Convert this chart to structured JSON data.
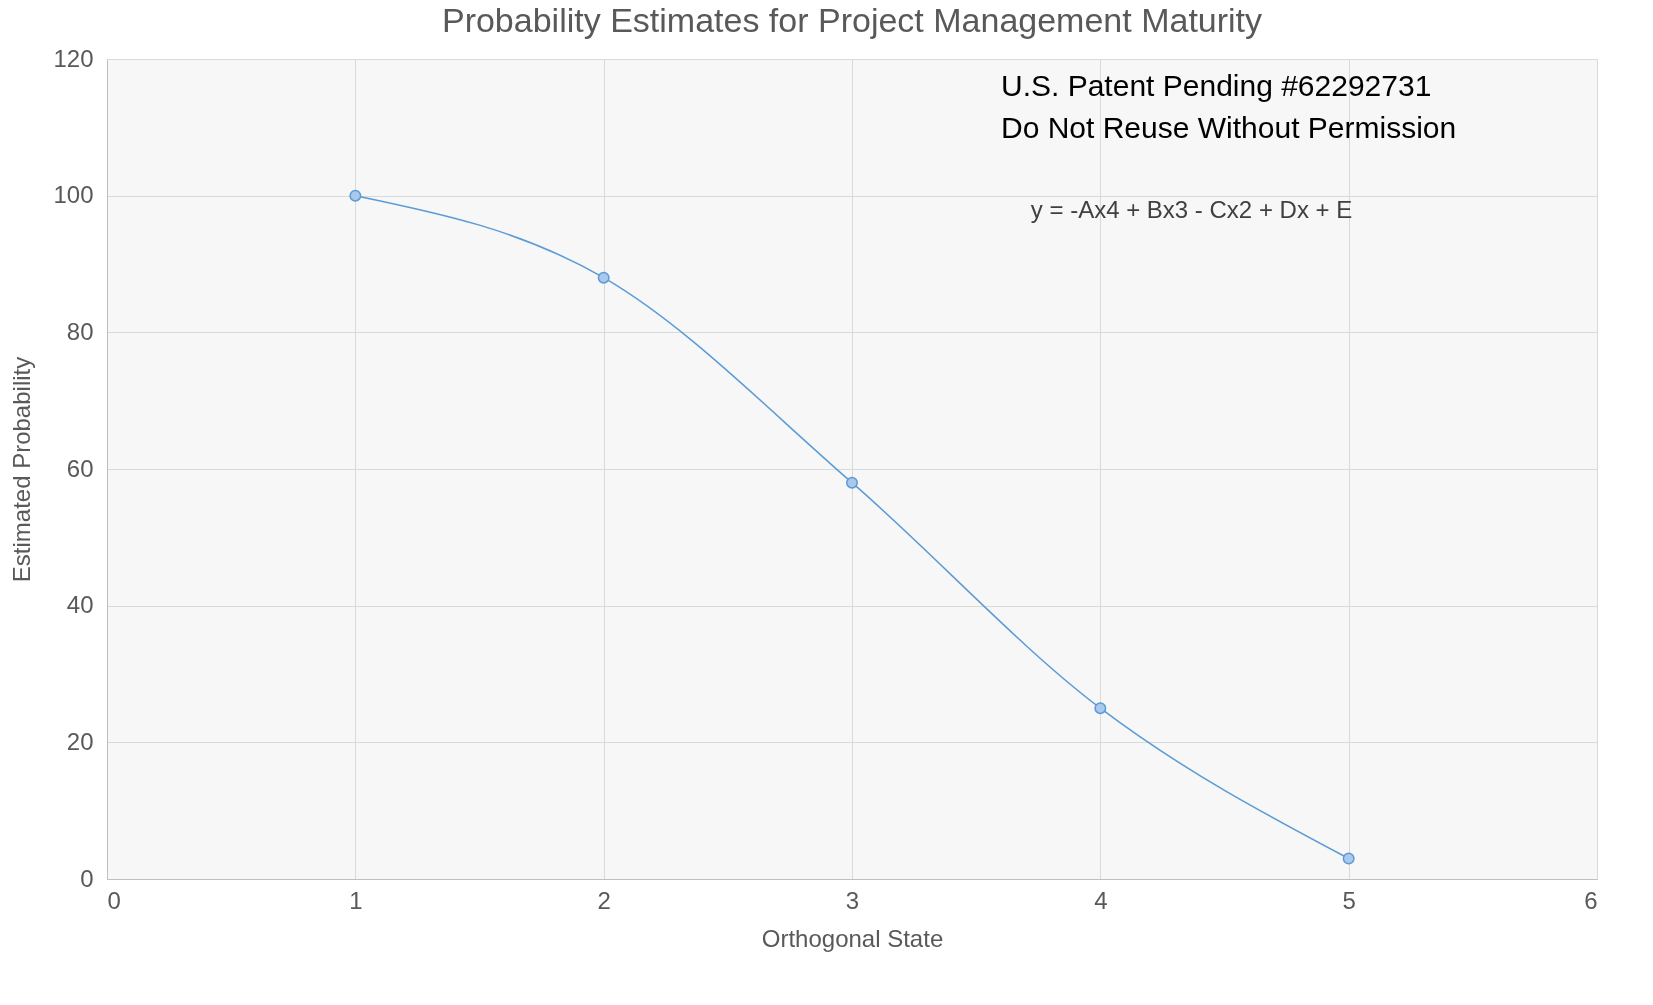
{
  "chart_data": {
    "type": "line",
    "title": "Probability Estimates for Project Management Maturity",
    "xlabel": "Orthogonal State",
    "ylabel": "Estimated Probability",
    "x": [
      1,
      2,
      3,
      4,
      5
    ],
    "series": [
      {
        "color": "#5b9bd5",
        "values": [
          100,
          88,
          58,
          25,
          3
        ]
      }
    ],
    "xlim": [
      0,
      6
    ],
    "xticks": [
      0,
      1,
      2,
      3,
      4,
      5,
      6
    ],
    "ylim": [
      0,
      120
    ],
    "yticks": [
      0,
      20,
      40,
      60,
      80,
      100,
      120
    ],
    "grid": true,
    "marker": "circle",
    "line_style": "solid",
    "annotations": [
      "U.S. Patent Pending #62292731",
      "Do Not Reuse Without Permission",
      "y = -Ax4 + Bx3 - Cx2 + Dx + E"
    ]
  }
}
